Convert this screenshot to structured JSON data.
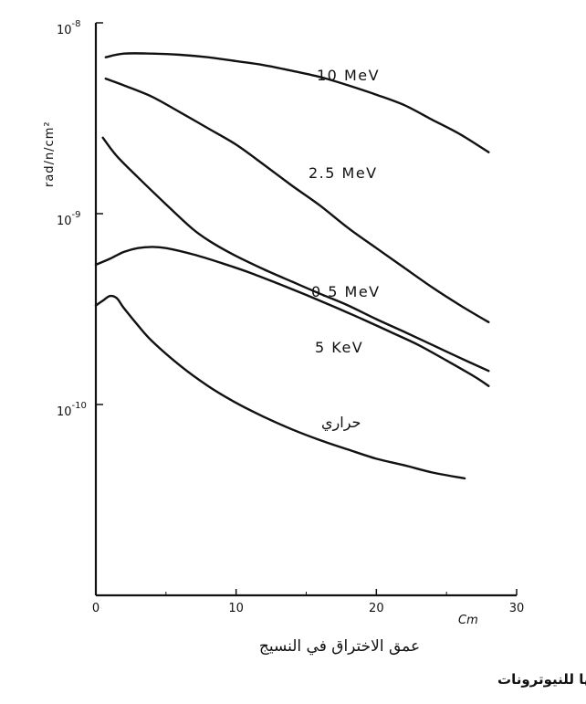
{
  "chart_data": {
    "type": "line",
    "y_scale": "log",
    "xlim": [
      0,
      30
    ],
    "ylim": [
      2e-11,
      1e-08
    ],
    "ylabel": "rad/n/cm²",
    "xlabel_unit": "Cm",
    "xlabel_arabic": "عمق الاختراق في النسيج",
    "x_ticks": [
      {
        "value": 0,
        "label": "0"
      },
      {
        "value": 10,
        "label": "10"
      },
      {
        "value": 20,
        "label": "20"
      },
      {
        "value": 30,
        "label": "30"
      }
    ],
    "y_ticks": [
      {
        "value": 1e-08,
        "label": "10",
        "exp": "-8"
      },
      {
        "value": 1e-09,
        "label": "10",
        "exp": "-9"
      },
      {
        "value": 1e-10,
        "label": "10",
        "exp": "-10"
      }
    ],
    "series": [
      {
        "name": "10 MeV",
        "x": [
          0.7,
          2,
          4,
          6,
          8,
          10,
          12,
          14,
          16,
          18,
          20,
          22,
          24,
          26,
          28
        ],
        "y": [
          6.6e-09,
          6.9e-09,
          6.9e-09,
          6.8e-09,
          6.6e-09,
          6.3e-09,
          6e-09,
          5.6e-09,
          5.2e-09,
          4.7e-09,
          4.2e-09,
          3.7e-09,
          3.1e-09,
          2.6e-09,
          2.1e-09
        ]
      },
      {
        "name": "2.5 MeV",
        "x": [
          0.7,
          2,
          4,
          6,
          8,
          10,
          12,
          14,
          16,
          18,
          20,
          22,
          24,
          26,
          28
        ],
        "y": [
          5.1e-09,
          4.7e-09,
          4.1e-09,
          3.4e-09,
          2.8e-09,
          2.3e-09,
          1.8e-09,
          1.4e-09,
          1.1e-09,
          8.4e-10,
          6.6e-10,
          5.2e-10,
          4.1e-10,
          3.3e-10,
          2.7e-10
        ]
      },
      {
        "name": "0.5 MeV",
        "x": [
          0.5,
          1.5,
          3,
          5,
          7,
          8.5,
          10,
          12,
          14,
          16,
          18,
          20,
          22,
          24,
          26,
          28
        ],
        "y": [
          2.5e-09,
          2e-09,
          1.55e-09,
          1.12e-09,
          8.2e-10,
          6.9e-10,
          6e-10,
          5.1e-10,
          4.4e-10,
          3.8e-10,
          3.3e-10,
          2.8e-10,
          2.4e-10,
          2.05e-10,
          1.75e-10,
          1.5e-10
        ]
      },
      {
        "name": "5 KeV",
        "x": [
          0,
          1,
          2,
          3,
          4,
          5,
          7,
          9,
          11,
          13,
          15,
          17,
          19,
          21,
          23,
          25,
          27,
          28
        ],
        "y": [
          5.4e-10,
          5.8e-10,
          6.3e-10,
          6.6e-10,
          6.7e-10,
          6.6e-10,
          6.1e-10,
          5.5e-10,
          4.9e-10,
          4.3e-10,
          3.75e-10,
          3.25e-10,
          2.8e-10,
          2.4e-10,
          2.05e-10,
          1.7e-10,
          1.4e-10,
          1.25e-10
        ]
      },
      {
        "name": "حراري",
        "x": [
          0,
          0.5,
          1,
          1.5,
          2,
          3,
          4,
          6,
          8,
          10,
          12,
          14,
          16,
          18,
          20,
          22,
          24,
          26.3
        ],
        "y": [
          3.3e-10,
          3.5e-10,
          3.7e-10,
          3.6e-10,
          3.2e-10,
          2.6e-10,
          2.15e-10,
          1.6e-10,
          1.25e-10,
          1.02e-10,
          8.6e-11,
          7.4e-11,
          6.5e-11,
          5.8e-11,
          5.2e-11,
          4.8e-11,
          4.4e-11,
          4.1e-11
        ]
      }
    ],
    "grid": false,
    "legend": "none (inline labels)"
  },
  "caption": "الطاقة الممتصة بواسطة كتلة من النسيج اللين عند تعرضها للنيوترونات",
  "line_color": "#111111"
}
